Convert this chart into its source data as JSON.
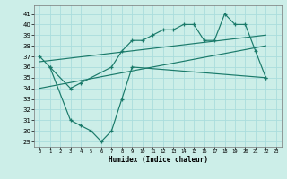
{
  "xlabel": "Humidex (Indice chaleur)",
  "bg_color": "#cceee8",
  "line_color": "#1a7a6a",
  "grid_color": "#aadddd",
  "ylim": [
    28.5,
    41.8
  ],
  "xlim": [
    -0.5,
    23.5
  ],
  "yticks": [
    29,
    30,
    31,
    32,
    33,
    34,
    35,
    36,
    37,
    38,
    39,
    40,
    41
  ],
  "xticks": [
    0,
    1,
    2,
    3,
    4,
    5,
    6,
    7,
    8,
    9,
    10,
    11,
    12,
    13,
    14,
    15,
    16,
    17,
    18,
    19,
    20,
    21,
    22,
    23
  ],
  "curve1_x": [
    0,
    1,
    3,
    4,
    7,
    8,
    9,
    10,
    11,
    12,
    13,
    14,
    15,
    16,
    17,
    18,
    19,
    20,
    21,
    22
  ],
  "curve1_y": [
    37.0,
    36.0,
    34.0,
    34.5,
    36.0,
    37.5,
    38.5,
    38.5,
    39.0,
    39.5,
    39.5,
    40.0,
    40.0,
    38.5,
    38.5,
    41.0,
    40.0,
    40.0,
    37.5,
    35.0
  ],
  "curve2_x": [
    0,
    22
  ],
  "curve2_y": [
    36.5,
    39.0
  ],
  "curve3_x": [
    0,
    22
  ],
  "curve3_y": [
    34.0,
    38.0
  ],
  "curve4_x": [
    1,
    3,
    4,
    5,
    6,
    7,
    8,
    9,
    22
  ],
  "curve4_y": [
    36.0,
    31.0,
    30.5,
    30.0,
    29.0,
    30.0,
    33.0,
    36.0,
    35.0
  ]
}
